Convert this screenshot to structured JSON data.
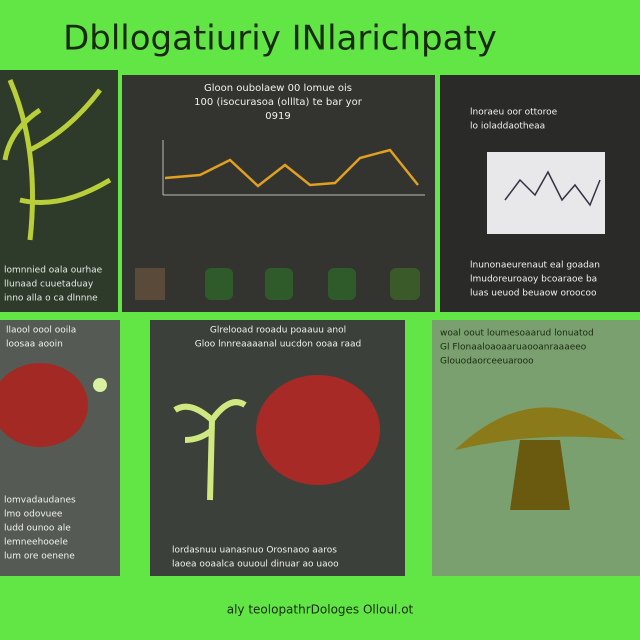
{
  "header": {
    "title": "Dbllogatiuriy INlarichpaty"
  },
  "panels": [
    {
      "lines": [
        "lomnnied oala ourhae",
        "llunaad cuuetaduay",
        "inno alla o ca dlnnne"
      ]
    },
    {
      "title": [
        "Gloon oubolaew 00 lomue ois",
        "100 (isocurasoa (olllta) te bar yor",
        "0919"
      ]
    },
    {
      "title": [
        "lnoraeu oor ottoroe",
        "lo ioladdaotheaa"
      ],
      "lines": [
        "lnunonaeurenaut eal goadan",
        "lmudoreuroaoy bcoaraoe ba",
        "luas ueuod beuaow oroocoo"
      ]
    },
    {
      "title": [
        "llaool oool ooila",
        "loosaa aooin"
      ],
      "lines": [
        "lomvadaudanes",
        "lmo odovuee",
        "ludd ounoo ale",
        "lemneehooele",
        "lum ore oenene"
      ]
    },
    {
      "title": [
        "Glrelooad rooadu poaauu anol",
        "Gloo lnnreaaaanal uucdon ooaa raad"
      ],
      "lines": [
        "lordasnuu uanasnuo Orosnaoo aaros",
        "laoea ooaalca ouuoul dinuar ao uaoo"
      ]
    },
    {
      "title": [
        "woal oout loumesoaarud lonuatod",
        "Gl Flonaaloaoaaruaooanraaaeeo",
        "Glouodaorceeuarooo"
      ]
    }
  ],
  "footer": {
    "caption": "aly teolopathrDologes Olloul.ot"
  }
}
